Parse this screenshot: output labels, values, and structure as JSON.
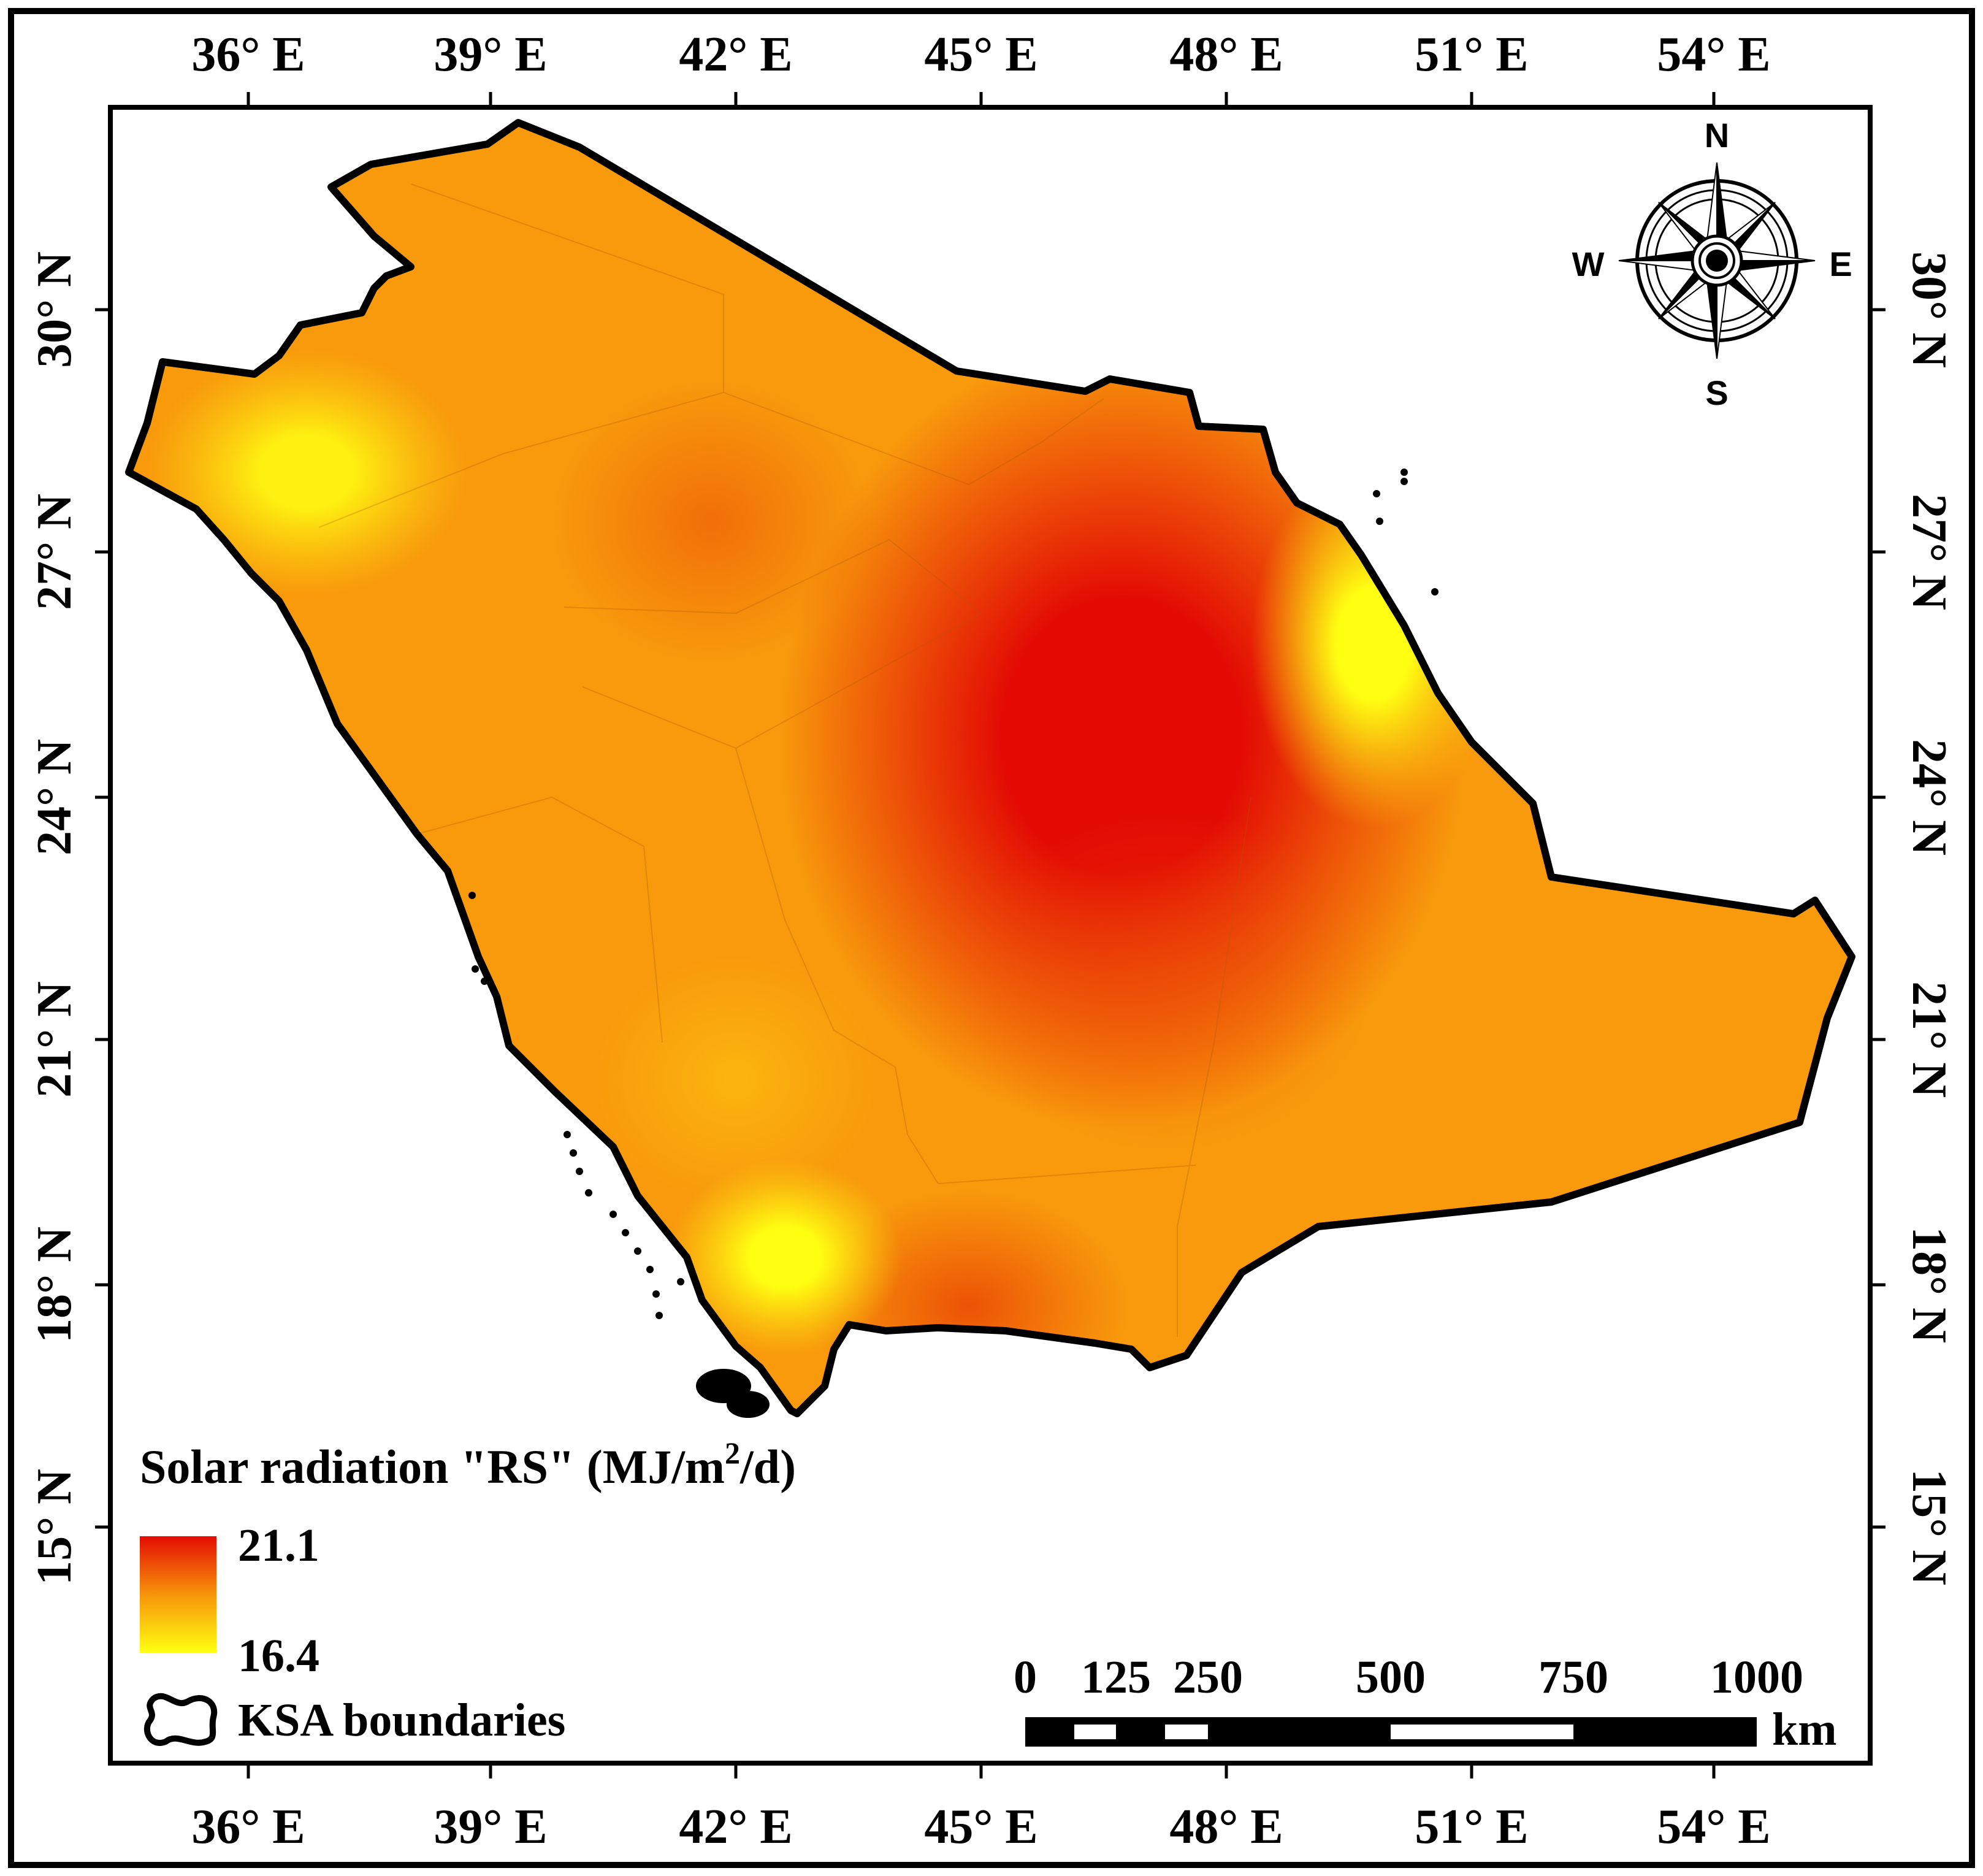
{
  "axes": {
    "longitude_ticks": [
      "36° E",
      "39° E",
      "42° E",
      "45° E",
      "48° E",
      "51° E",
      "54° E"
    ],
    "latitude_ticks": [
      "30° N",
      "27° N",
      "24° N",
      "21° N",
      "18° N",
      "15° N"
    ]
  },
  "compass": {
    "north": "N",
    "south": "S",
    "east": "E",
    "west": "W",
    "icon": "compass-rose-icon"
  },
  "legend": {
    "title_prefix": "Solar radiation \"RS\" (MJ/m",
    "title_superscript": "2",
    "title_suffix": "/d)",
    "max_value": "21.1",
    "min_value": "16.4",
    "color_high": "#e30b04",
    "color_mid": "#f7940a",
    "color_low": "#ffff12",
    "boundary_label": "KSA boundaries",
    "boundary_icon": "boundary-outline-icon"
  },
  "scale_bar": {
    "ticks": [
      "0",
      "125",
      "250",
      "500",
      "750",
      "1000"
    ],
    "unit": "km"
  },
  "map": {
    "fill_base": "#f89a0c",
    "hotspot_color": "#e30b04",
    "coolspot_color": "#ffff12",
    "border_color": "#000000"
  }
}
